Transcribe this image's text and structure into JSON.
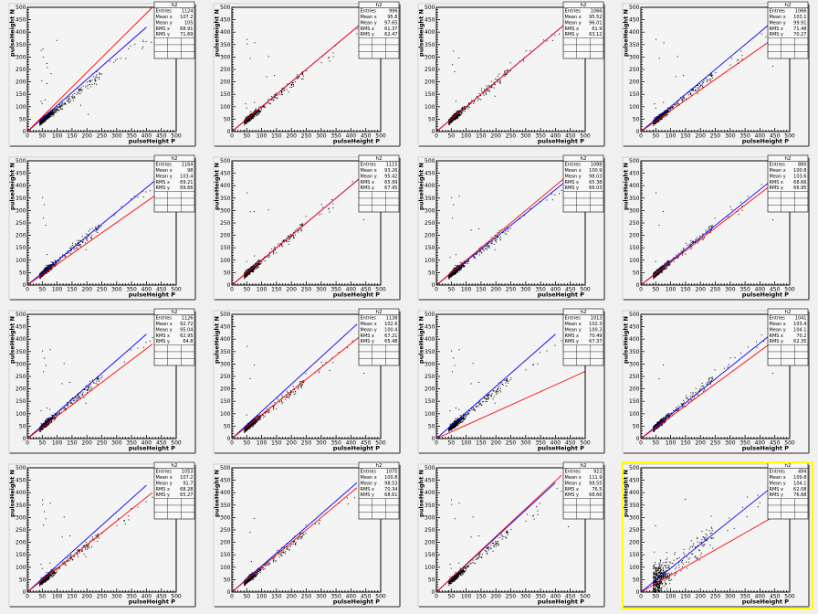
{
  "chart_data": {
    "type": "scatter",
    "grid": false,
    "xlabel": "pulseHeight P",
    "ylabel": "pulseHeight N",
    "xlim": [
      0,
      500
    ],
    "ylim": [
      0,
      500
    ],
    "xticks": [
      "0",
      "50",
      "100",
      "150",
      "200",
      "250",
      "300",
      "350",
      "400",
      "450",
      "500"
    ],
    "yticks": [
      "0",
      "50",
      "100",
      "150",
      "200",
      "250",
      "300",
      "350",
      "400",
      "450",
      "500"
    ],
    "stats_title": "h2",
    "stats_labels": [
      "Entries",
      "Mean x",
      "Mean y",
      "RMS x",
      "RMS y"
    ],
    "colors": {
      "points": "#000000",
      "line_1": "#0000ff",
      "line_2": "#ff0000",
      "highlight": "#ffff00",
      "frame": "#000000"
    },
    "panels": [
      {
        "stats": [
          "1124",
          "107.2",
          "105",
          "68.91",
          "71.69"
        ],
        "lines": [
          {
            "color": "blue",
            "end": [
              400,
              420
            ]
          },
          {
            "color": "red",
            "end": [
              420,
              500
            ]
          }
        ]
      },
      {
        "stats": [
          "996",
          "95.8",
          "97.65",
          "61.37",
          "62.47"
        ],
        "lines": [
          {
            "color": "blue",
            "end": [
              500,
              500
            ]
          },
          {
            "color": "red",
            "end": [
              500,
              500
            ]
          }
        ]
      },
      {
        "stats": [
          "1066",
          "95.52",
          "96.01",
          "61.9",
          "63.12"
        ],
        "lines": [
          {
            "color": "blue",
            "end": [
              500,
              500
            ]
          },
          {
            "color": "red",
            "end": [
              500,
              500
            ]
          }
        ]
      },
      {
        "stats": [
          "1066",
          "103.1",
          "99.91",
          "71.48",
          "70.27"
        ],
        "lines": [
          {
            "color": "blue",
            "end": [
              500,
              500
            ]
          },
          {
            "color": "red",
            "end": [
              500,
              420
            ]
          }
        ]
      },
      {
        "stats": [
          "1164",
          "98",
          "103.4",
          "69.21",
          "69.66"
        ],
        "lines": [
          {
            "color": "blue",
            "end": [
              500,
              490
            ]
          },
          {
            "color": "red",
            "end": [
              500,
              420
            ]
          }
        ]
      },
      {
        "stats": [
          "1115",
          "93.26",
          "95.42",
          "65.99",
          "67.95"
        ],
        "lines": [
          {
            "color": "blue",
            "end": [
              500,
              500
            ]
          },
          {
            "color": "red",
            "end": [
              500,
              500
            ]
          }
        ]
      },
      {
        "stats": [
          "1088",
          "100.9",
          "98.03",
          "65.38",
          "66.03"
        ],
        "lines": [
          {
            "color": "blue",
            "end": [
              500,
              480
            ]
          },
          {
            "color": "red",
            "end": [
              500,
              500
            ]
          }
        ]
      },
      {
        "stats": [
          "880",
          "100.8",
          "103.6",
          "68.66",
          "66.95"
        ],
        "lines": [
          {
            "color": "blue",
            "end": [
              500,
              480
            ]
          },
          {
            "color": "red",
            "end": [
              500,
              460
            ]
          }
        ]
      },
      {
        "stats": [
          "1126",
          "92.72",
          "95.04",
          "62.95",
          "64.8"
        ],
        "lines": [
          {
            "color": "blue",
            "end": [
              400,
              420
            ]
          },
          {
            "color": "red",
            "end": [
              420,
              380
            ]
          }
        ]
      },
      {
        "stats": [
          "1138",
          "102.6",
          "100.4",
          "67.21",
          "65.48"
        ],
        "lines": [
          {
            "color": "blue",
            "end": [
              420,
              460
            ]
          },
          {
            "color": "red",
            "end": [
              440,
              420
            ]
          }
        ]
      },
      {
        "stats": [
          "1013",
          "102.3",
          "100.3",
          "70.49",
          "67.37"
        ],
        "lines": [
          {
            "color": "blue",
            "end": [
              400,
              420
            ]
          },
          {
            "color": "red",
            "end": [
              500,
              270
            ]
          }
        ]
      },
      {
        "stats": [
          "1041",
          "103.4",
          "104.1",
          "70.2",
          "62.35"
        ],
        "lines": [
          {
            "color": "blue",
            "end": [
              500,
              480
            ]
          },
          {
            "color": "red",
            "end": [
              500,
              440
            ]
          }
        ]
      },
      {
        "stats": [
          "1053",
          "107.2",
          "91.7",
          "68.28",
          "65.27"
        ],
        "lines": [
          {
            "color": "blue",
            "end": [
              400,
              430
            ]
          },
          {
            "color": "red",
            "end": [
              420,
              400
            ]
          }
        ]
      },
      {
        "stats": [
          "1075",
          "100.8",
          "98.53",
          "70.34",
          "68.61"
        ],
        "lines": [
          {
            "color": "blue",
            "end": [
              420,
              440
            ]
          },
          {
            "color": "red",
            "end": [
              420,
              420
            ]
          }
        ]
      },
      {
        "stats": [
          "922",
          "111.9",
          "99.55",
          "76.5",
          "68.66"
        ],
        "lines": [
          {
            "color": "blue",
            "end": [
              400,
              440
            ]
          },
          {
            "color": "red",
            "end": [
              420,
              470
            ]
          }
        ]
      },
      {
        "stats": [
          "494",
          "109.8",
          "104.1",
          "62.08",
          "76.68"
        ],
        "lines": [
          {
            "color": "blue",
            "end": [
              500,
              480
            ]
          },
          {
            "color": "red",
            "end": [
              500,
              340
            ]
          }
        ]
      }
    ],
    "highlighted_panel": 15
  }
}
